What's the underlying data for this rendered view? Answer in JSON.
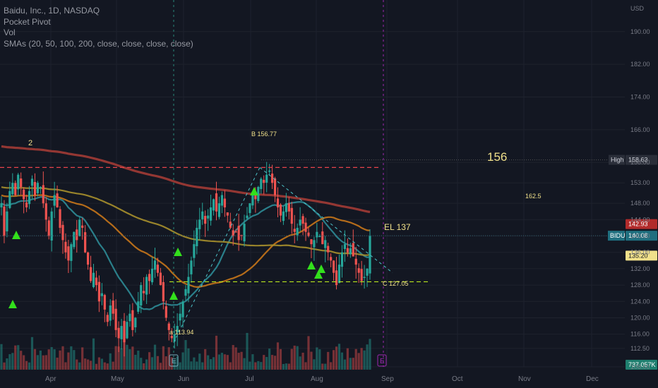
{
  "legend": {
    "title": "Baidu, Inc., 1D, NASDAQ",
    "line2": "Pocket Pivot",
    "line3": "Vol",
    "line4": "SMAs (20, 50, 100, 200, close, close, close, close)"
  },
  "colors": {
    "background": "#131722",
    "up": "#26a69a",
    "down": "#ef5350",
    "sma20": "#2e8b96",
    "sma50": "#c8761a",
    "sma100": "#a8902c",
    "sma200": "#a33b35",
    "pivot": "#33e01c",
    "dashed_red": "#e8434b",
    "dashed_green": "#b8e61e",
    "purple": "#9c27b0"
  },
  "chart_data": {
    "type": "candlestick",
    "symbol": "BIDU",
    "currency": "USD",
    "ylim": [
      108,
      196
    ],
    "y_ticks": [
      "190.00",
      "182.00",
      "174.00",
      "166.00",
      "158.00",
      "153.00",
      "148.00",
      "144.00",
      "140.00",
      "136.00",
      "132.00",
      "128.00",
      "124.00",
      "120.00",
      "116.00",
      "112.50",
      "108.00"
    ],
    "x_ticks": [
      "Apr",
      "May",
      "Jun",
      "Jul",
      "Aug",
      "Sep",
      "Oct",
      "Nov",
      "Dec"
    ],
    "price_tags": {
      "high_label": "High",
      "high_value": "158.63",
      "last_value": "142.93",
      "symbol_value": "140.08",
      "sma_value": "135.20",
      "volume_value": "737.057K"
    },
    "annotations": {
      "big_target": "156",
      "target_2": "162.5",
      "el": "EL 137",
      "point_b": "B 156.77",
      "point_c": "C 127.05",
      "point_a": "a 113.94",
      "left_mark": "2",
      "earnings_1": "E",
      "earnings_2": "E"
    },
    "levels": {
      "resistance": 156.77,
      "support": 128.8
    },
    "closes": [
      148,
      140,
      146,
      151,
      153,
      150,
      155,
      152,
      149,
      147,
      151,
      154,
      150,
      153,
      152,
      148,
      144,
      140,
      146,
      150,
      147,
      142,
      139,
      136,
      134,
      138,
      141,
      139,
      144,
      142,
      136,
      133,
      129,
      131,
      128,
      124,
      126,
      122,
      119,
      123,
      121,
      117,
      115,
      118,
      114,
      119,
      121,
      117,
      120,
      124,
      128,
      126,
      130,
      129,
      132,
      134,
      131,
      128,
      124,
      120,
      117,
      115,
      116,
      118,
      121,
      124,
      127,
      130,
      134,
      138,
      142,
      144,
      146,
      143,
      145,
      147,
      149,
      146,
      148,
      150,
      147,
      145,
      142,
      140,
      141,
      139,
      140,
      143,
      145,
      148,
      150,
      149,
      152,
      154,
      153,
      155,
      156,
      153,
      150,
      147,
      145,
      146,
      148,
      146,
      143,
      141,
      142,
      144,
      143,
      141,
      140,
      138,
      139,
      141,
      140,
      138,
      139,
      136,
      134,
      131,
      128,
      133,
      136,
      138,
      136,
      137,
      135,
      133,
      131,
      129,
      130,
      132,
      140
    ]
  }
}
